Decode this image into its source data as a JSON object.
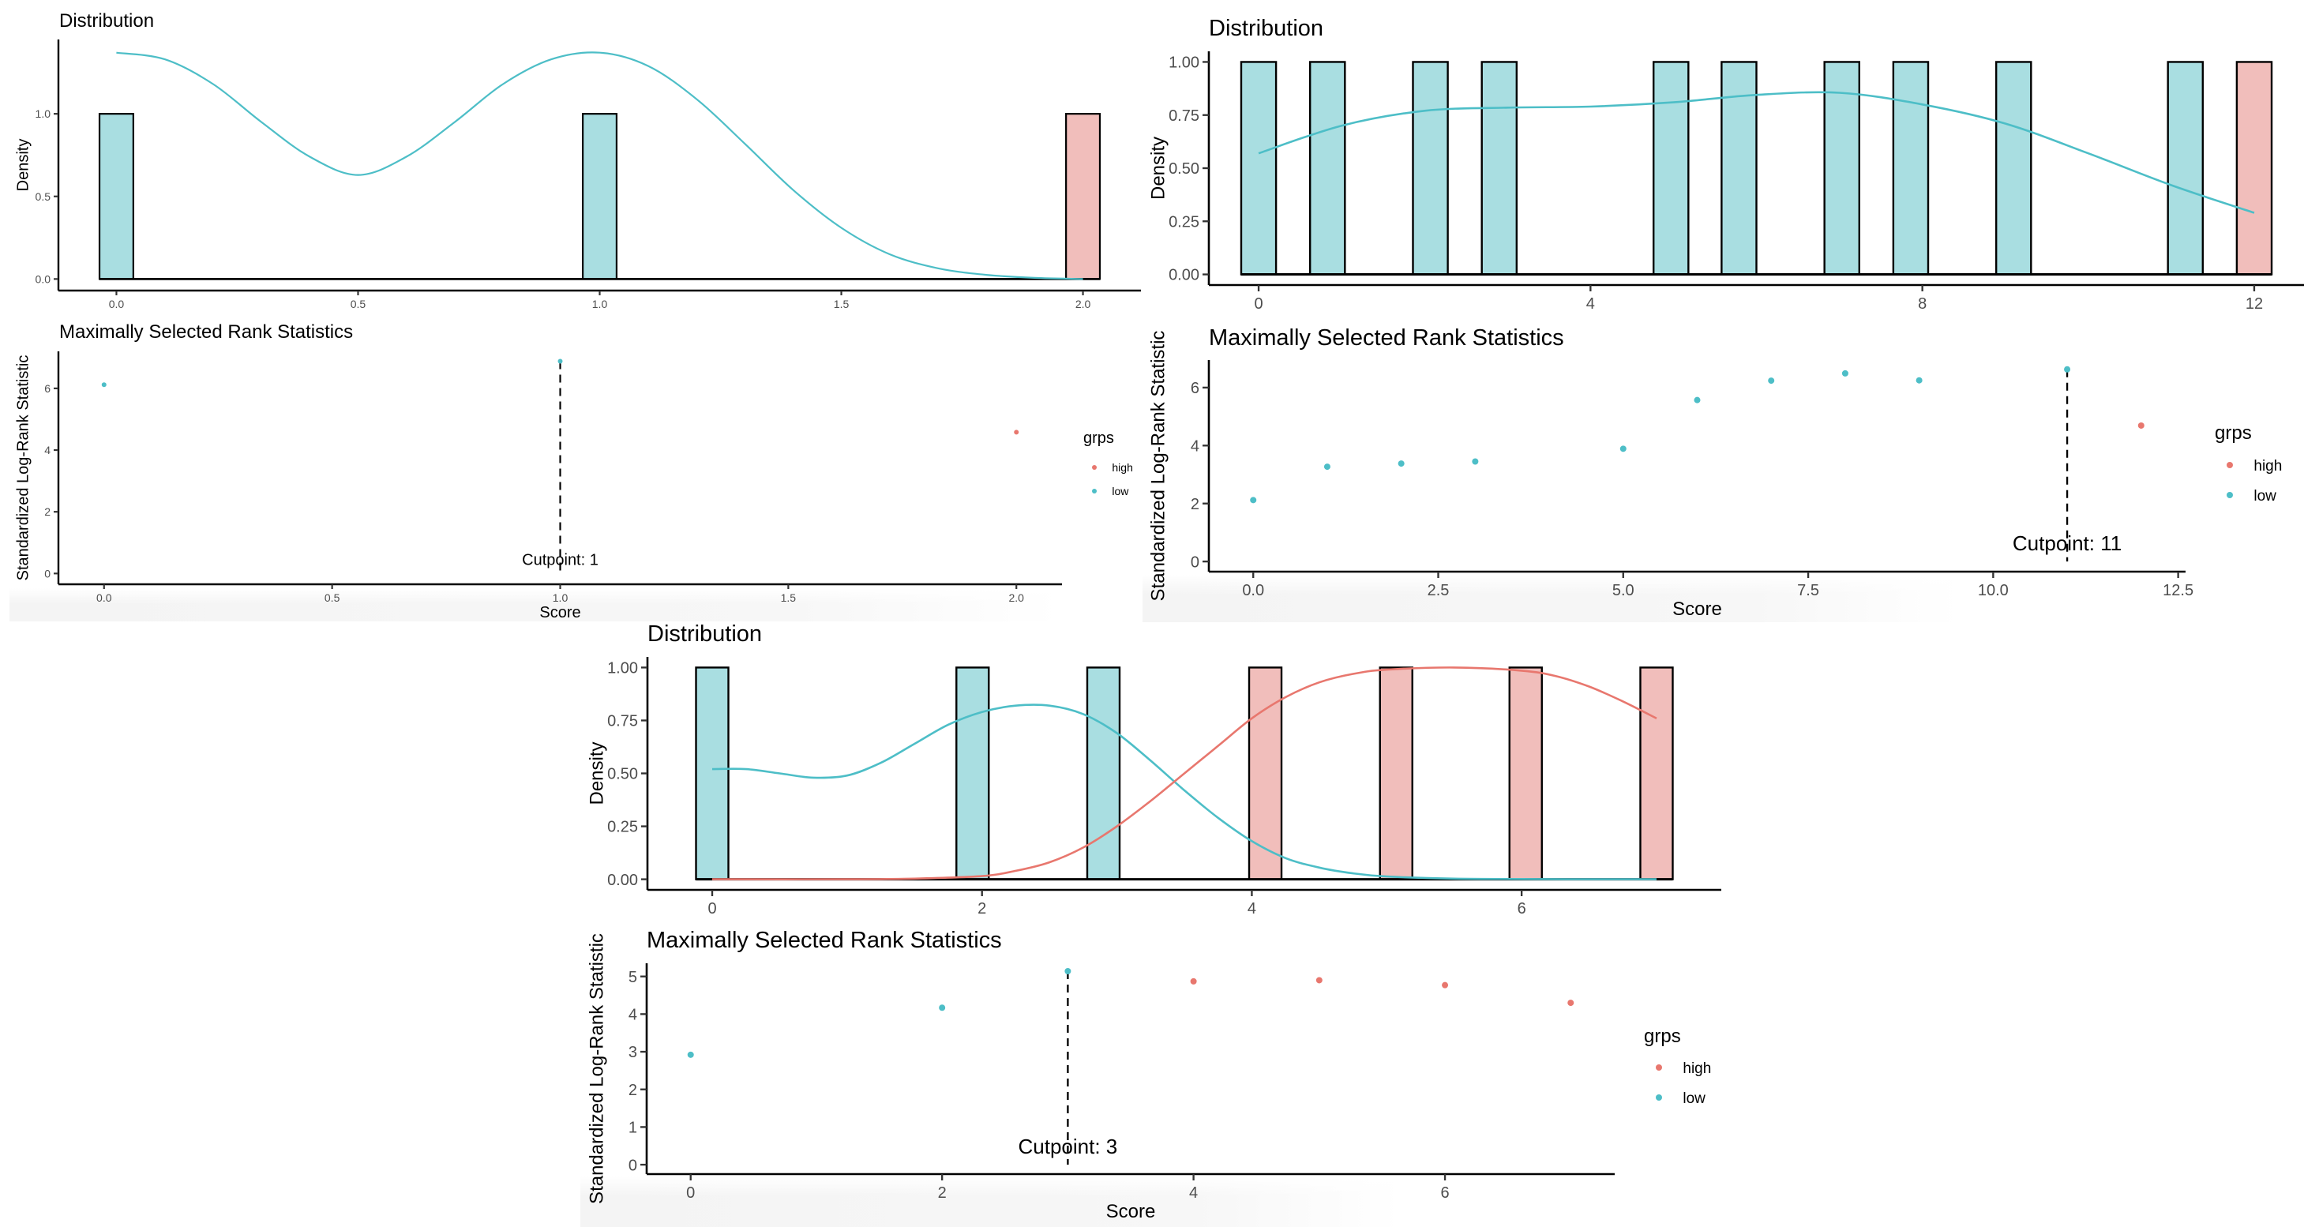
{
  "colors": {
    "low_fill": "#A9DEE1",
    "high_fill": "#F1BEBB",
    "low_line": "#4DBEC7",
    "high_line": "#E8776E",
    "low_point": "#4DBEC7",
    "high_point": "#E8776E",
    "axis": "#000000",
    "tick_text": "#4D4D4D"
  },
  "chart_data": [
    {
      "id": "tl_dist",
      "type": "bar",
      "title": "Distribution",
      "xlabel": "",
      "ylabel": "Density",
      "xlim": [
        -0.12,
        2.12
      ],
      "ylim": [
        -0.07,
        1.45
      ],
      "xticks": [
        0.0,
        0.5,
        1.0,
        1.5,
        2.0
      ],
      "xtick_labels": [
        "0.0",
        "0.5",
        "1.0",
        "1.5",
        "2.0"
      ],
      "yticks": [
        0.0,
        0.5,
        1.0
      ],
      "ytick_labels": [
        "0.0",
        "0.5",
        "1.0"
      ],
      "bar_width": 0.07,
      "bars": [
        {
          "x": 0,
          "value": 1.0,
          "group": "low"
        },
        {
          "x": 1,
          "value": 1.0,
          "group": "low"
        },
        {
          "x": 2,
          "value": 1.0,
          "group": "high"
        }
      ],
      "density": [
        {
          "group": "low",
          "x": [
            0,
            0.1,
            0.2,
            0.3,
            0.4,
            0.5,
            0.6,
            0.7,
            0.8,
            0.9,
            1.0,
            1.1,
            1.2,
            1.3,
            1.4,
            1.5,
            1.6,
            1.7,
            1.8,
            1.9,
            2.0
          ],
          "y": [
            1.37,
            1.33,
            1.18,
            0.95,
            0.74,
            0.63,
            0.74,
            0.95,
            1.18,
            1.33,
            1.37,
            1.29,
            1.09,
            0.82,
            0.54,
            0.31,
            0.15,
            0.065,
            0.025,
            0.007,
            0.0
          ]
        }
      ]
    },
    {
      "id": "tl_stat",
      "type": "scatter",
      "title": "Maximally Selected Rank Statistics",
      "xlabel": "Score",
      "ylabel": "Standardized Log-Rank Statistic",
      "xlim": [
        -0.1,
        2.1
      ],
      "ylim": [
        -0.35,
        7.2
      ],
      "xticks": [
        0.0,
        0.5,
        1.0,
        1.5,
        2.0
      ],
      "xtick_labels": [
        "0.0",
        "0.5",
        "1.0",
        "1.5",
        "2.0"
      ],
      "yticks": [
        0,
        2,
        4,
        6
      ],
      "ytick_labels": [
        "0",
        "2",
        "4",
        "6"
      ],
      "points": [
        {
          "x": 0,
          "y": 6.12,
          "group": "low"
        },
        {
          "x": 1,
          "y": 6.88,
          "group": "low"
        },
        {
          "x": 2,
          "y": 4.58,
          "group": "high"
        }
      ],
      "cutpoint": 1,
      "cutpoint_label": "Cutpoint: 1",
      "legend": {
        "title": "grps",
        "items": [
          {
            "label": "high",
            "group": "high"
          },
          {
            "label": "low",
            "group": "low"
          }
        ],
        "position": "right"
      }
    },
    {
      "id": "tr_dist",
      "type": "bar",
      "title": "Distribution",
      "xlabel": "",
      "ylabel": "Density",
      "xlim": [
        -0.6,
        12.6
      ],
      "ylim": [
        -0.05,
        1.05
      ],
      "xticks": [
        0,
        4,
        8,
        12
      ],
      "xtick_labels": [
        "0",
        "4",
        "8",
        "12"
      ],
      "yticks": [
        0.0,
        0.25,
        0.5,
        0.75,
        1.0
      ],
      "ytick_labels": [
        "0.00",
        "0.25",
        "0.50",
        "0.75",
        "1.00"
      ],
      "bar_width": 0.42,
      "bars": [
        {
          "x": 0,
          "value": 1.0,
          "group": "low"
        },
        {
          "x": 0.83,
          "value": 1.0,
          "group": "low"
        },
        {
          "x": 2.07,
          "value": 1.0,
          "group": "low"
        },
        {
          "x": 2.9,
          "value": 1.0,
          "group": "low"
        },
        {
          "x": 4.97,
          "value": 1.0,
          "group": "low"
        },
        {
          "x": 5.79,
          "value": 1.0,
          "group": "low"
        },
        {
          "x": 7.03,
          "value": 1.0,
          "group": "low"
        },
        {
          "x": 7.86,
          "value": 1.0,
          "group": "low"
        },
        {
          "x": 9.1,
          "value": 1.0,
          "group": "low"
        },
        {
          "x": 11.17,
          "value": 1.0,
          "group": "low"
        },
        {
          "x": 12.0,
          "value": 1.0,
          "group": "high"
        }
      ],
      "density": [
        {
          "group": "low",
          "x": [
            0,
            1,
            2,
            3,
            4,
            5,
            6,
            7,
            8,
            9,
            10,
            11,
            12
          ],
          "y": [
            0.57,
            0.7,
            0.77,
            0.785,
            0.79,
            0.81,
            0.845,
            0.855,
            0.8,
            0.71,
            0.57,
            0.42,
            0.29
          ]
        }
      ]
    },
    {
      "id": "tr_stat",
      "type": "scatter",
      "title": "Maximally Selected Rank Statistics",
      "xlabel": "Score",
      "ylabel": "Standardized Log-Rank Statistic",
      "xlim": [
        -0.6,
        12.6
      ],
      "ylim": [
        -0.35,
        6.95
      ],
      "xticks": [
        0.0,
        2.5,
        5.0,
        7.5,
        10.0,
        12.5
      ],
      "xtick_labels": [
        "0.0",
        "2.5",
        "5.0",
        "7.5",
        "10.0",
        "12.5"
      ],
      "yticks": [
        0,
        2,
        4,
        6
      ],
      "ytick_labels": [
        "0",
        "2",
        "4",
        "6"
      ],
      "points": [
        {
          "x": 0,
          "y": 2.12,
          "group": "low"
        },
        {
          "x": 1,
          "y": 3.27,
          "group": "low"
        },
        {
          "x": 2,
          "y": 3.38,
          "group": "low"
        },
        {
          "x": 3,
          "y": 3.45,
          "group": "low"
        },
        {
          "x": 5,
          "y": 3.89,
          "group": "low"
        },
        {
          "x": 6,
          "y": 5.57,
          "group": "low"
        },
        {
          "x": 7,
          "y": 6.24,
          "group": "low"
        },
        {
          "x": 8,
          "y": 6.49,
          "group": "low"
        },
        {
          "x": 9,
          "y": 6.25,
          "group": "low"
        },
        {
          "x": 11,
          "y": 6.63,
          "group": "low"
        },
        {
          "x": 12,
          "y": 4.69,
          "group": "high"
        }
      ],
      "cutpoint": 11,
      "cutpoint_label": "Cutpoint: 11",
      "legend": {
        "title": "grps",
        "items": [
          {
            "label": "high",
            "group": "high"
          },
          {
            "label": "low",
            "group": "low"
          }
        ],
        "position": "right"
      }
    },
    {
      "id": "b_dist",
      "type": "bar",
      "title": "Distribution",
      "xlabel": "",
      "ylabel": "Density",
      "xlim": [
        -0.48,
        7.48
      ],
      "ylim": [
        -0.05,
        1.05
      ],
      "xticks": [
        0,
        2,
        4,
        6
      ],
      "xtick_labels": [
        "0",
        "2",
        "4",
        "6"
      ],
      "yticks": [
        0.0,
        0.25,
        0.5,
        0.75,
        1.0
      ],
      "ytick_labels": [
        "0.00",
        "0.25",
        "0.50",
        "0.75",
        "1.00"
      ],
      "bar_width": 0.24,
      "bars": [
        {
          "x": 0,
          "value": 1.0,
          "group": "low"
        },
        {
          "x": 1.93,
          "value": 1.0,
          "group": "low"
        },
        {
          "x": 2.9,
          "value": 1.0,
          "group": "low"
        },
        {
          "x": 4.1,
          "value": 1.0,
          "group": "high"
        },
        {
          "x": 5.07,
          "value": 1.0,
          "group": "high"
        },
        {
          "x": 6.03,
          "value": 1.0,
          "group": "high"
        },
        {
          "x": 7.0,
          "value": 1.0,
          "group": "high"
        }
      ],
      "density": [
        {
          "group": "low",
          "x": [
            0,
            0.25,
            0.5,
            0.75,
            1.0,
            1.25,
            1.5,
            1.75,
            2.0,
            2.25,
            2.5,
            2.75,
            3.0,
            3.25,
            3.5,
            3.75,
            4.0,
            4.25,
            4.5,
            4.75,
            5.0,
            5.5,
            6.0,
            6.5,
            7.0
          ],
          "y": [
            0.52,
            0.52,
            0.5,
            0.48,
            0.49,
            0.55,
            0.64,
            0.73,
            0.79,
            0.82,
            0.82,
            0.78,
            0.69,
            0.56,
            0.42,
            0.29,
            0.18,
            0.1,
            0.055,
            0.028,
            0.013,
            0.003,
            0.001,
            0.0,
            0.0
          ]
        },
        {
          "group": "high",
          "x": [
            0,
            1.0,
            1.5,
            2.0,
            2.25,
            2.5,
            2.75,
            3.0,
            3.25,
            3.5,
            3.75,
            4.0,
            4.25,
            4.5,
            4.75,
            5.0,
            5.5,
            6.0,
            6.25,
            6.5,
            6.75,
            7.0
          ],
          "y": [
            0.0,
            0.0,
            0.003,
            0.015,
            0.04,
            0.08,
            0.15,
            0.25,
            0.37,
            0.5,
            0.63,
            0.76,
            0.86,
            0.93,
            0.97,
            0.99,
            1.0,
            0.985,
            0.96,
            0.91,
            0.84,
            0.76
          ]
        }
      ]
    },
    {
      "id": "b_stat",
      "type": "scatter",
      "title": "Maximally Selected Rank Statistics",
      "xlabel": "Score",
      "ylabel": "Standardized Log-Rank Statistic",
      "xlim": [
        -0.35,
        7.35
      ],
      "ylim": [
        -0.25,
        5.35
      ],
      "xticks": [
        0,
        2,
        4,
        6
      ],
      "xtick_labels": [
        "0",
        "2",
        "4",
        "6"
      ],
      "yticks": [
        0,
        1,
        2,
        3,
        4,
        5
      ],
      "ytick_labels": [
        "0",
        "1",
        "2",
        "3",
        "4",
        "5"
      ],
      "points": [
        {
          "x": 0,
          "y": 2.92,
          "group": "low"
        },
        {
          "x": 2,
          "y": 4.17,
          "group": "low"
        },
        {
          "x": 3,
          "y": 5.14,
          "group": "low"
        },
        {
          "x": 4,
          "y": 4.87,
          "group": "high"
        },
        {
          "x": 5,
          "y": 4.9,
          "group": "high"
        },
        {
          "x": 6,
          "y": 4.77,
          "group": "high"
        },
        {
          "x": 7,
          "y": 4.3,
          "group": "high"
        }
      ],
      "cutpoint": 3,
      "cutpoint_label": "Cutpoint: 3",
      "legend": {
        "title": "grps",
        "items": [
          {
            "label": "high",
            "group": "high"
          },
          {
            "label": "low",
            "group": "low"
          }
        ],
        "position": "right"
      }
    }
  ]
}
